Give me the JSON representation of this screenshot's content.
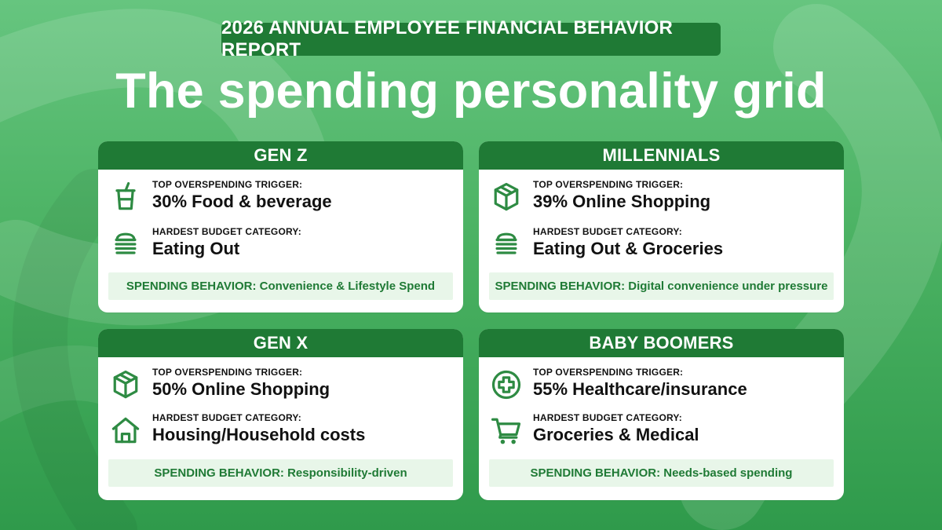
{
  "report_badge": "2026 ANNUAL EMPLOYEE FINANCIAL BEHAVIOR REPORT",
  "main_title": "The spending personality grid",
  "cards": [
    {
      "header": "GEN Z",
      "trigger_label": "TOP OVERSPENDING TRIGGER:",
      "trigger_value": "30% Food & beverage",
      "trigger_icon": "drink-cup-icon",
      "budget_label": "HARDEST BUDGET CATEGORY:",
      "budget_value": "Eating Out",
      "budget_icon": "burger-icon",
      "behavior": "SPENDING BEHAVIOR: Convenience & Lifestyle Spend"
    },
    {
      "header": "MILLENNIALS",
      "trigger_label": "TOP OVERSPENDING TRIGGER:",
      "trigger_value": "39% Online Shopping",
      "trigger_icon": "package-box-icon",
      "budget_label": "HARDEST BUDGET CATEGORY:",
      "budget_value": "Eating Out & Groceries",
      "budget_icon": "burger-icon",
      "behavior": "SPENDING BEHAVIOR: Digital convenience under pressure"
    },
    {
      "header": "GEN X",
      "trigger_label": "TOP OVERSPENDING TRIGGER:",
      "trigger_value": "50% Online Shopping",
      "trigger_icon": "package-box-icon",
      "budget_label": "HARDEST BUDGET CATEGORY:",
      "budget_value": "Housing/Household costs",
      "budget_icon": "house-icon",
      "behavior": "SPENDING BEHAVIOR: Responsibility-driven"
    },
    {
      "header": "BABY BOOMERS",
      "trigger_label": "TOP OVERSPENDING TRIGGER:",
      "trigger_value": "55% Healthcare/insurance",
      "trigger_icon": "medical-cross-icon",
      "budget_label": "HARDEST BUDGET CATEGORY:",
      "budget_value": "Groceries & Medical",
      "budget_icon": "shopping-cart-icon",
      "behavior": "SPENDING BEHAVIOR: Needs-based spending"
    }
  ],
  "colors": {
    "accent_green": "#1f7a35",
    "icon_green": "#2e8b43",
    "behavior_bg": "#e8f6e9",
    "background_top": "#66c57f",
    "background_bottom": "#2f9a4b"
  }
}
